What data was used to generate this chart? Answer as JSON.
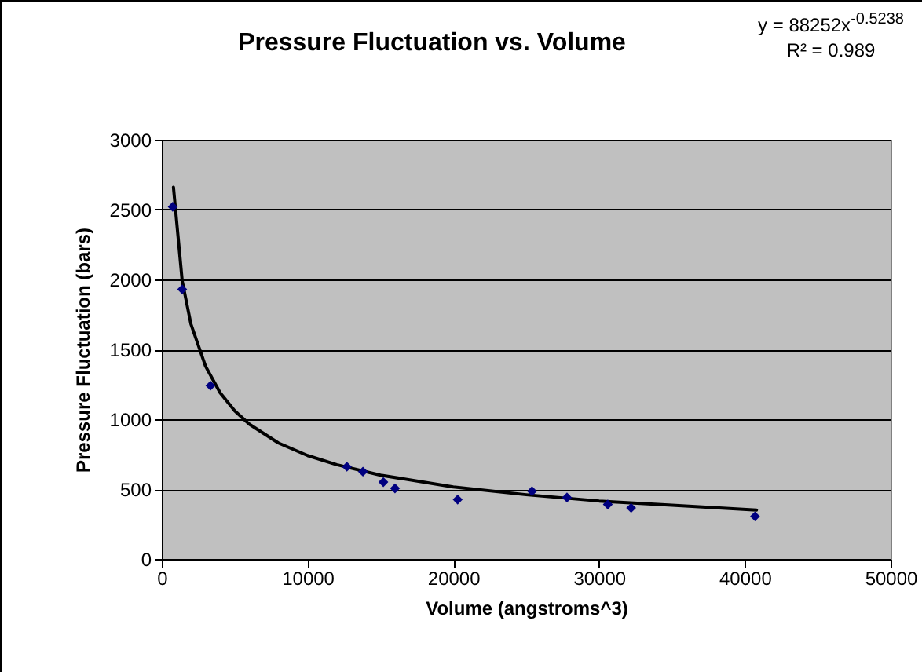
{
  "chart_data": {
    "type": "scatter",
    "title": "Pressure Fluctuation vs. Volume",
    "xlabel": "Volume (angstroms^3)",
    "ylabel": "Pressure Fluctuation (bars)",
    "annotations": [
      "y = 88252x$^{-0.5238}$",
      "R² = 0.989"
    ],
    "xlim": [
      0,
      50000
    ],
    "xticks": [
      0,
      10000,
      20000,
      30000,
      40000,
      50000
    ],
    "ylim": [
      0,
      3000
    ],
    "yticks": [
      0,
      500,
      1000,
      1500,
      2000,
      2500,
      3000
    ],
    "grid": "y",
    "marker": "diamond",
    "series": [
      {
        "color": "#000080",
        "x": [
          750,
          1400,
          3340,
          12700,
          13800,
          15200,
          16000,
          20300,
          25400,
          27800,
          30600,
          32200,
          40700
        ],
        "values": [
          2520,
          1930,
          1240,
          660,
          625,
          550,
          505,
          425,
          485,
          440,
          390,
          365,
          305
        ]
      },
      {
        "type": "line",
        "color": "#000000",
        "line_style": "solid",
        "marker": "none",
        "x": [
          800,
          1400,
          2000,
          3000,
          4000,
          5000,
          6000,
          8000,
          10000,
          12000,
          15000,
          20000,
          25000,
          30000,
          35000,
          40800
        ],
        "values": [
          2660,
          1990,
          1680,
          1380,
          1190,
          1060,
          965,
          830,
          740,
          675,
          600,
          515,
          460,
          415,
          385,
          350
        ]
      }
    ]
  }
}
